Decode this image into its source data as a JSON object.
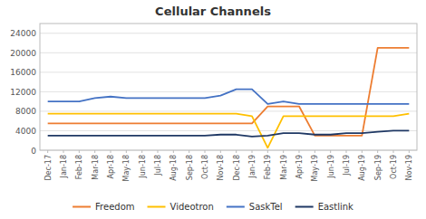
{
  "chart_data": {
    "type": "line",
    "title": "Cellular Channels",
    "categories": [
      "Dec-17",
      "Jan-18",
      "Feb-18",
      "Mar-18",
      "Apr-18",
      "May-18",
      "Jun-18",
      "Jul-18",
      "Aug-18",
      "Sep-18",
      "Oct-18",
      "Nov-18",
      "Dec-18",
      "Jan-19",
      "Feb-19",
      "Mar-19",
      "Apr-19",
      "May-19",
      "Jun-19",
      "Jul-19",
      "Aug-19",
      "Sep-19",
      "Oct-19",
      "Nov-19"
    ],
    "series": [
      {
        "name": "Freedom",
        "color": "#ED7D31",
        "values": [
          5500,
          5500,
          5500,
          5500,
          5500,
          5500,
          5500,
          5500,
          5500,
          5500,
          5500,
          5500,
          5500,
          5500,
          9000,
          9000,
          9000,
          3000,
          3000,
          3000,
          3000,
          21000,
          21000,
          21000
        ]
      },
      {
        "name": "Videotron",
        "color": "#FFC000",
        "values": [
          7500,
          7500,
          7500,
          7500,
          7500,
          7500,
          7500,
          7500,
          7500,
          7500,
          7500,
          7500,
          7500,
          7000,
          500,
          7000,
          7000,
          7000,
          7000,
          7000,
          7000,
          7000,
          7000,
          7500
        ]
      },
      {
        "name": "SaskTel",
        "color": "#4472C4",
        "values": [
          10000,
          10000,
          10000,
          10700,
          11000,
          10700,
          10700,
          10700,
          10700,
          10700,
          10700,
          11200,
          12500,
          12500,
          9500,
          10000,
          9500,
          9500,
          9500,
          9500,
          9500,
          9500,
          9500,
          9500
        ]
      },
      {
        "name": "Eastlink",
        "color": "#1F3864",
        "values": [
          3000,
          3000,
          3000,
          3000,
          3000,
          3000,
          3000,
          3000,
          3000,
          3000,
          3000,
          3200,
          3200,
          2800,
          3000,
          3500,
          3500,
          3200,
          3200,
          3500,
          3500,
          3800,
          4000,
          4000
        ]
      }
    ],
    "ylim": [
      0,
      26000
    ],
    "yticks": [
      0,
      4000,
      8000,
      12000,
      16000,
      20000,
      24000
    ],
    "grid": true,
    "legend": "bottom"
  }
}
